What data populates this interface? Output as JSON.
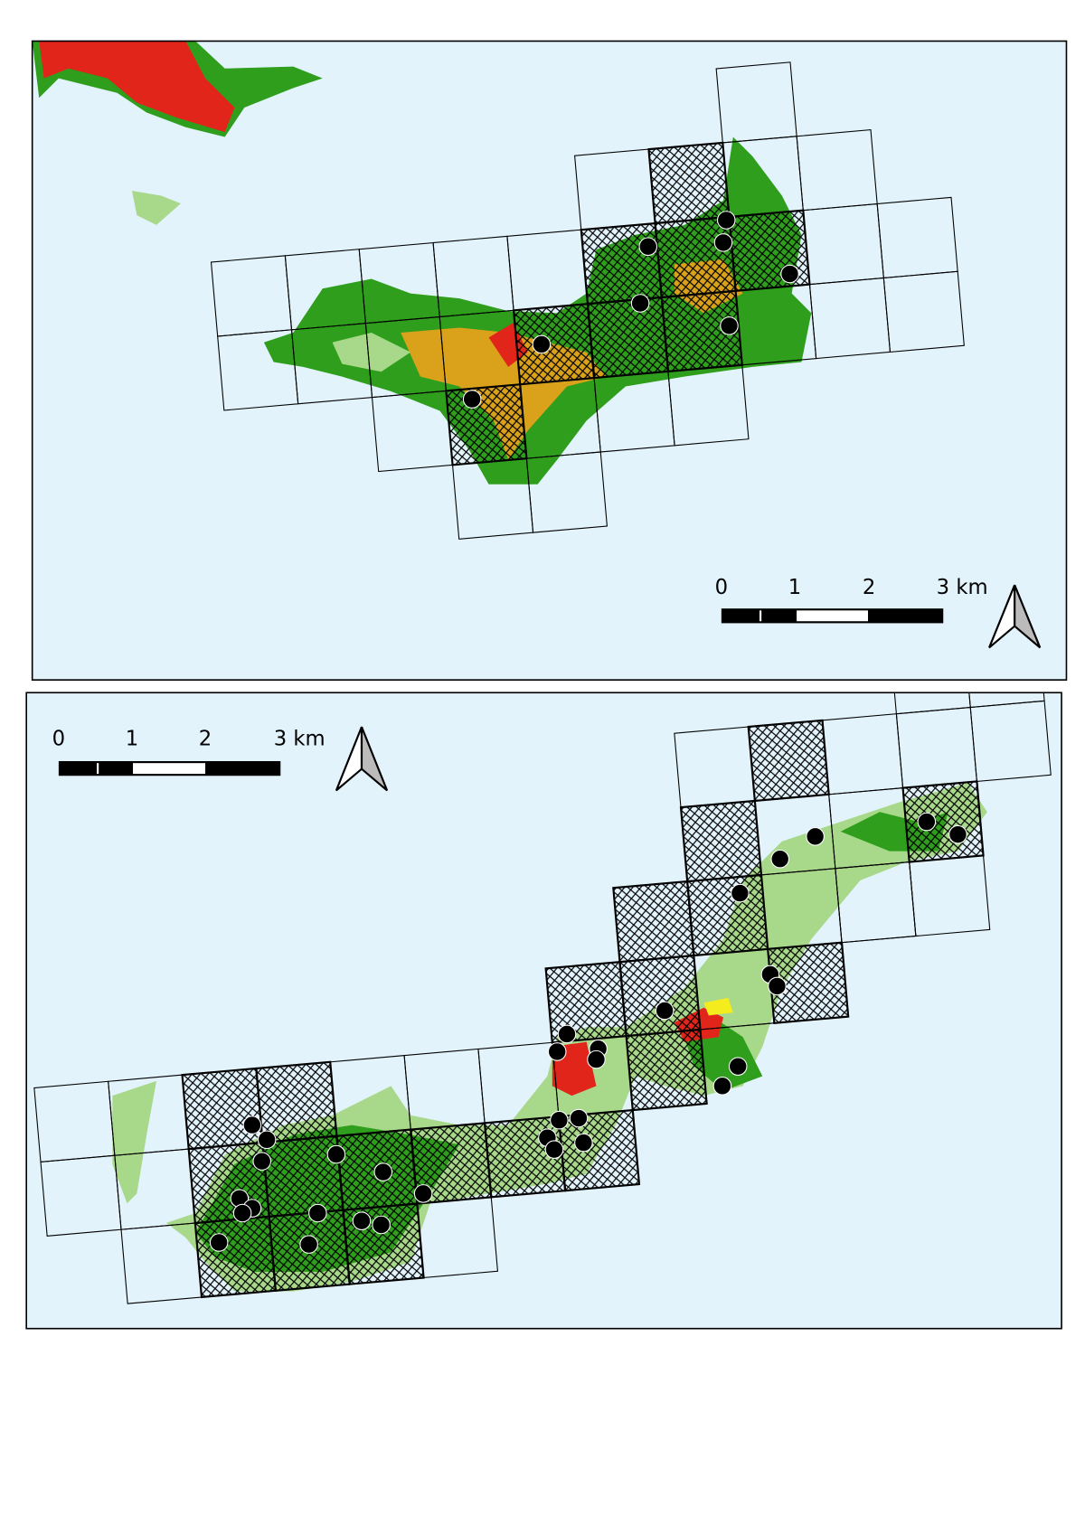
{
  "maps": [
    {
      "scale_labels": [
        "0",
        "1",
        "2",
        "3 km"
      ]
    },
    {
      "scale_labels": [
        "0",
        "1",
        "2",
        "3 km"
      ]
    }
  ]
}
